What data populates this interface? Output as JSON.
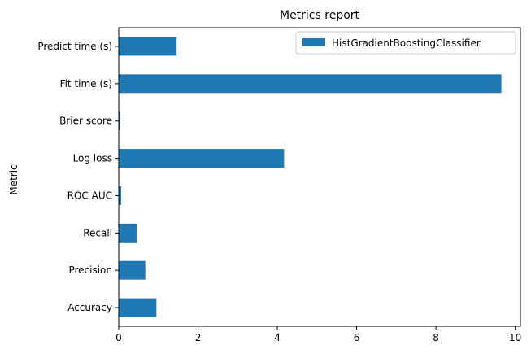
{
  "chart_data": {
    "type": "bar",
    "orientation": "horizontal",
    "title": "Metrics report",
    "xlabel": "",
    "ylabel": "Metric",
    "categories": [
      "Accuracy",
      "Precision",
      "Recall",
      "ROC AUC",
      "Log loss",
      "Brier score",
      "Fit time (s)",
      "Predict time (s)"
    ],
    "series": [
      {
        "name": "HistGradientBoostingClassifier",
        "values": [
          0.95,
          0.67,
          0.45,
          0.06,
          4.17,
          0.03,
          9.65,
          1.46
        ],
        "color": "#1f77b4"
      }
    ],
    "xlim": [
      0,
      10.13
    ],
    "xticks": [
      0,
      2,
      4,
      6,
      8,
      10
    ],
    "grid": false,
    "legend_position": "top-right"
  }
}
